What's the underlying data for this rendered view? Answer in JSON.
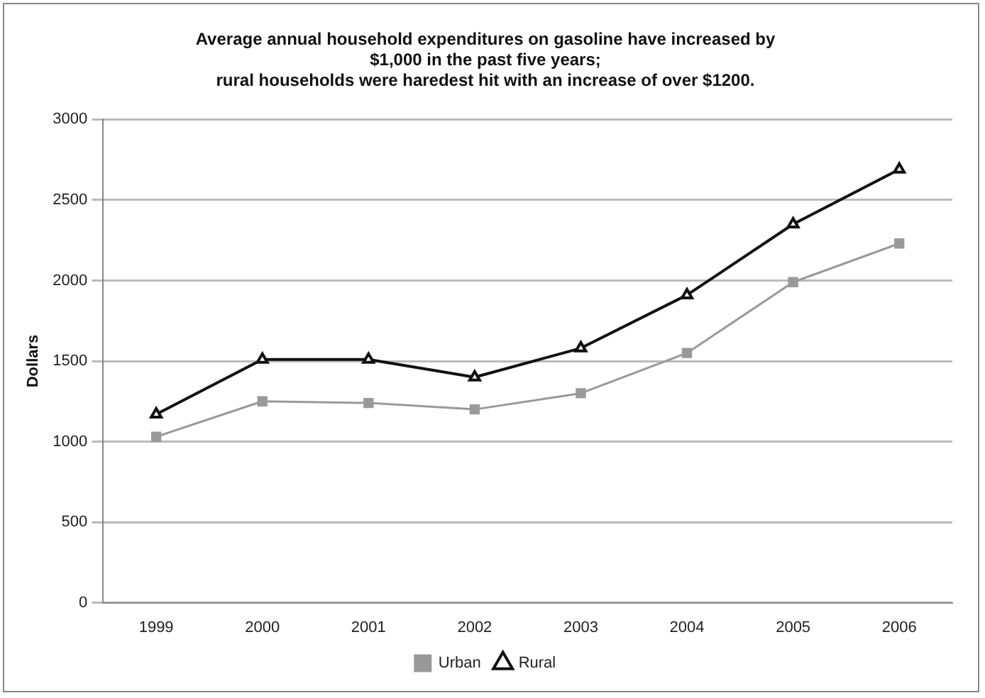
{
  "chart_data": {
    "type": "line",
    "title": [
      "Average annual household expenditures on gasoline have increased by",
      "$1,000 in the past five years;",
      "rural households were haredest hit with an increase of over $1200."
    ],
    "ylabel": "Dollars",
    "categories": [
      "1999",
      "2000",
      "2001",
      "2002",
      "2003",
      "2004",
      "2005",
      "2006"
    ],
    "series": [
      {
        "name": "Urban",
        "color": "#999999",
        "marker": "square",
        "values": [
          1030,
          1250,
          1240,
          1200,
          1300,
          1550,
          1990,
          2230
        ]
      },
      {
        "name": "Rural",
        "color": "#111111",
        "marker": "triangle",
        "values": [
          1170,
          1510,
          1510,
          1400,
          1580,
          1910,
          2350,
          2690
        ]
      }
    ],
    "ylim": [
      0,
      3000
    ],
    "yticks": [
      0,
      500,
      1000,
      1500,
      2000,
      2500,
      3000
    ],
    "grid": "y",
    "legend": "bottom",
    "line_style": "solid"
  }
}
